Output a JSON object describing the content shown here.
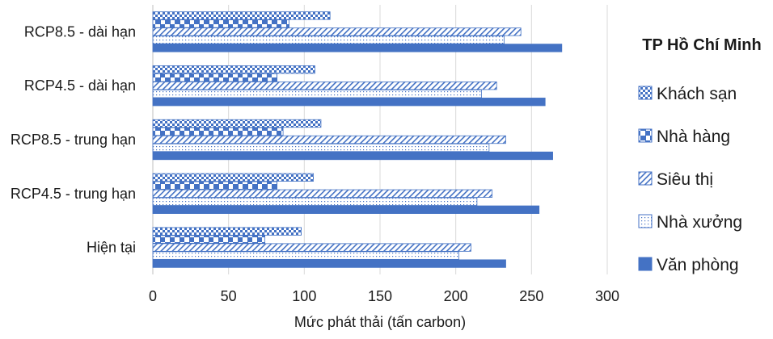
{
  "chart_data": {
    "type": "bar",
    "orientation": "horizontal",
    "title": "",
    "xlabel": "Mức phát thải (tấn carbon)",
    "ylabel": "",
    "xlim": [
      0,
      300
    ],
    "x_ticks": [
      0,
      50,
      100,
      150,
      200,
      250,
      300
    ],
    "grid": "vertical",
    "categories": [
      "RCP8.5 - dài hạn",
      "RCP4.5 - dài hạn",
      "RCP8.5 - trung hạn",
      "RCP4.5 - trung hạn",
      "Hiện tại"
    ],
    "legend": {
      "title": "TP Hồ Chí Minh",
      "placement": "right"
    },
    "series": [
      {
        "name": "Khách sạn",
        "pattern": "checker",
        "color": "#4472c4",
        "values": [
          117,
          107,
          111,
          106,
          98
        ]
      },
      {
        "name": "Nhà hàng",
        "pattern": "large-blocks",
        "color": "#4472c4",
        "values": [
          90,
          82,
          86,
          82,
          74
        ]
      },
      {
        "name": "Siêu thị",
        "pattern": "diagonal",
        "color": "#4472c4",
        "values": [
          243,
          227,
          233,
          224,
          210
        ]
      },
      {
        "name": "Nhà xưởng",
        "pattern": "dots",
        "color": "#4472c4",
        "values": [
          232,
          217,
          222,
          214,
          202
        ]
      },
      {
        "name": "Văn phòng",
        "pattern": "solid",
        "color": "#4472c4",
        "values": [
          270,
          259,
          264,
          255,
          233
        ]
      }
    ]
  }
}
